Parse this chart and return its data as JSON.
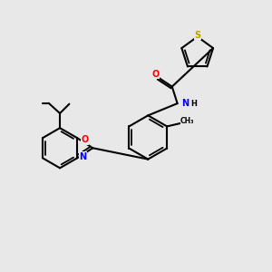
{
  "background_color": "#e8e8e8",
  "bond_color": "#000000",
  "atom_colors": {
    "S": "#b8a000",
    "O": "#ff0000",
    "N": "#0000ff",
    "C": "#000000"
  },
  "figsize": [
    3.0,
    3.0
  ],
  "dpi": 100
}
